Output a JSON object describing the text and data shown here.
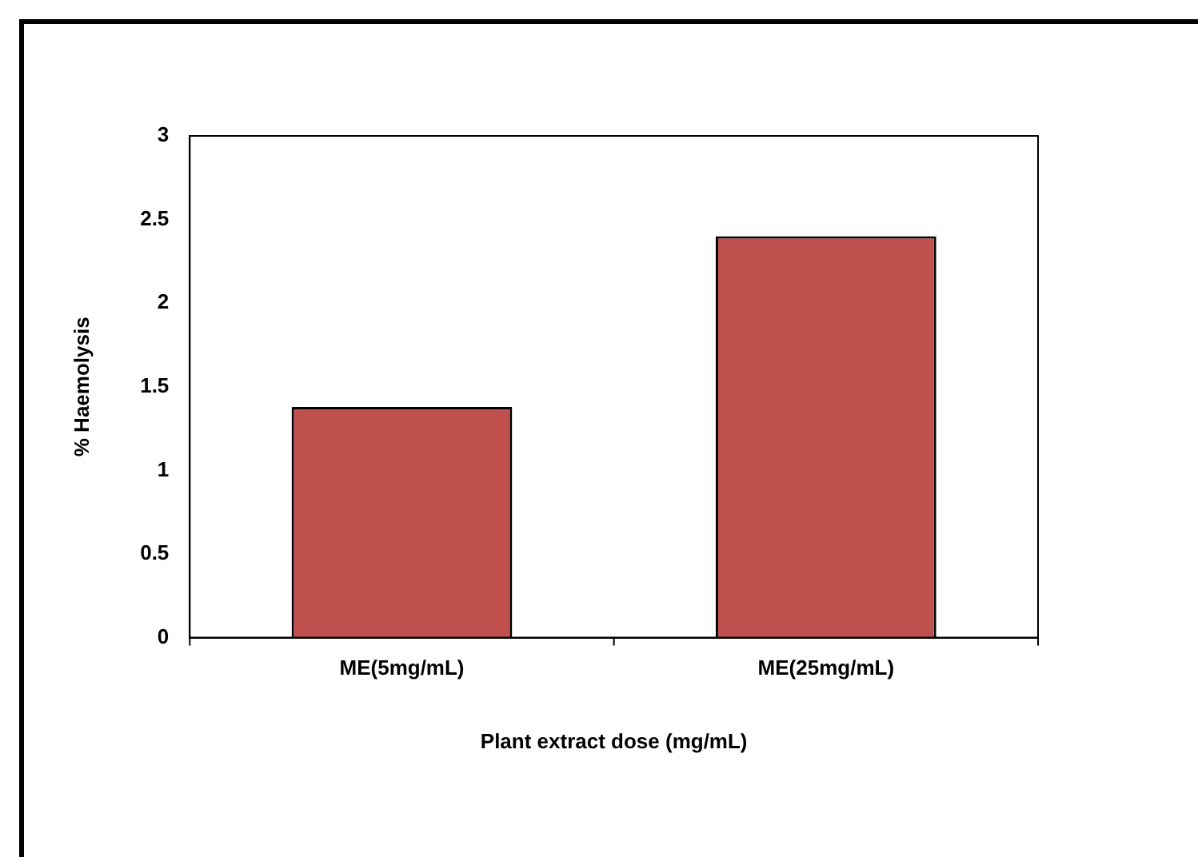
{
  "chart_data": {
    "type": "bar",
    "categories": [
      "ME(5mg/mL)",
      "ME(25mg/mL)"
    ],
    "values": [
      1.38,
      2.4
    ],
    "color": "#c0504d",
    "xlabel": "Plant extract dose (mg/mL)",
    "ylabel": "% Haemolysis",
    "ylim": [
      0,
      3
    ],
    "yticks": [
      0,
      0.5,
      1,
      1.5,
      2,
      2.5,
      3
    ],
    "grid": false,
    "legend": false
  }
}
